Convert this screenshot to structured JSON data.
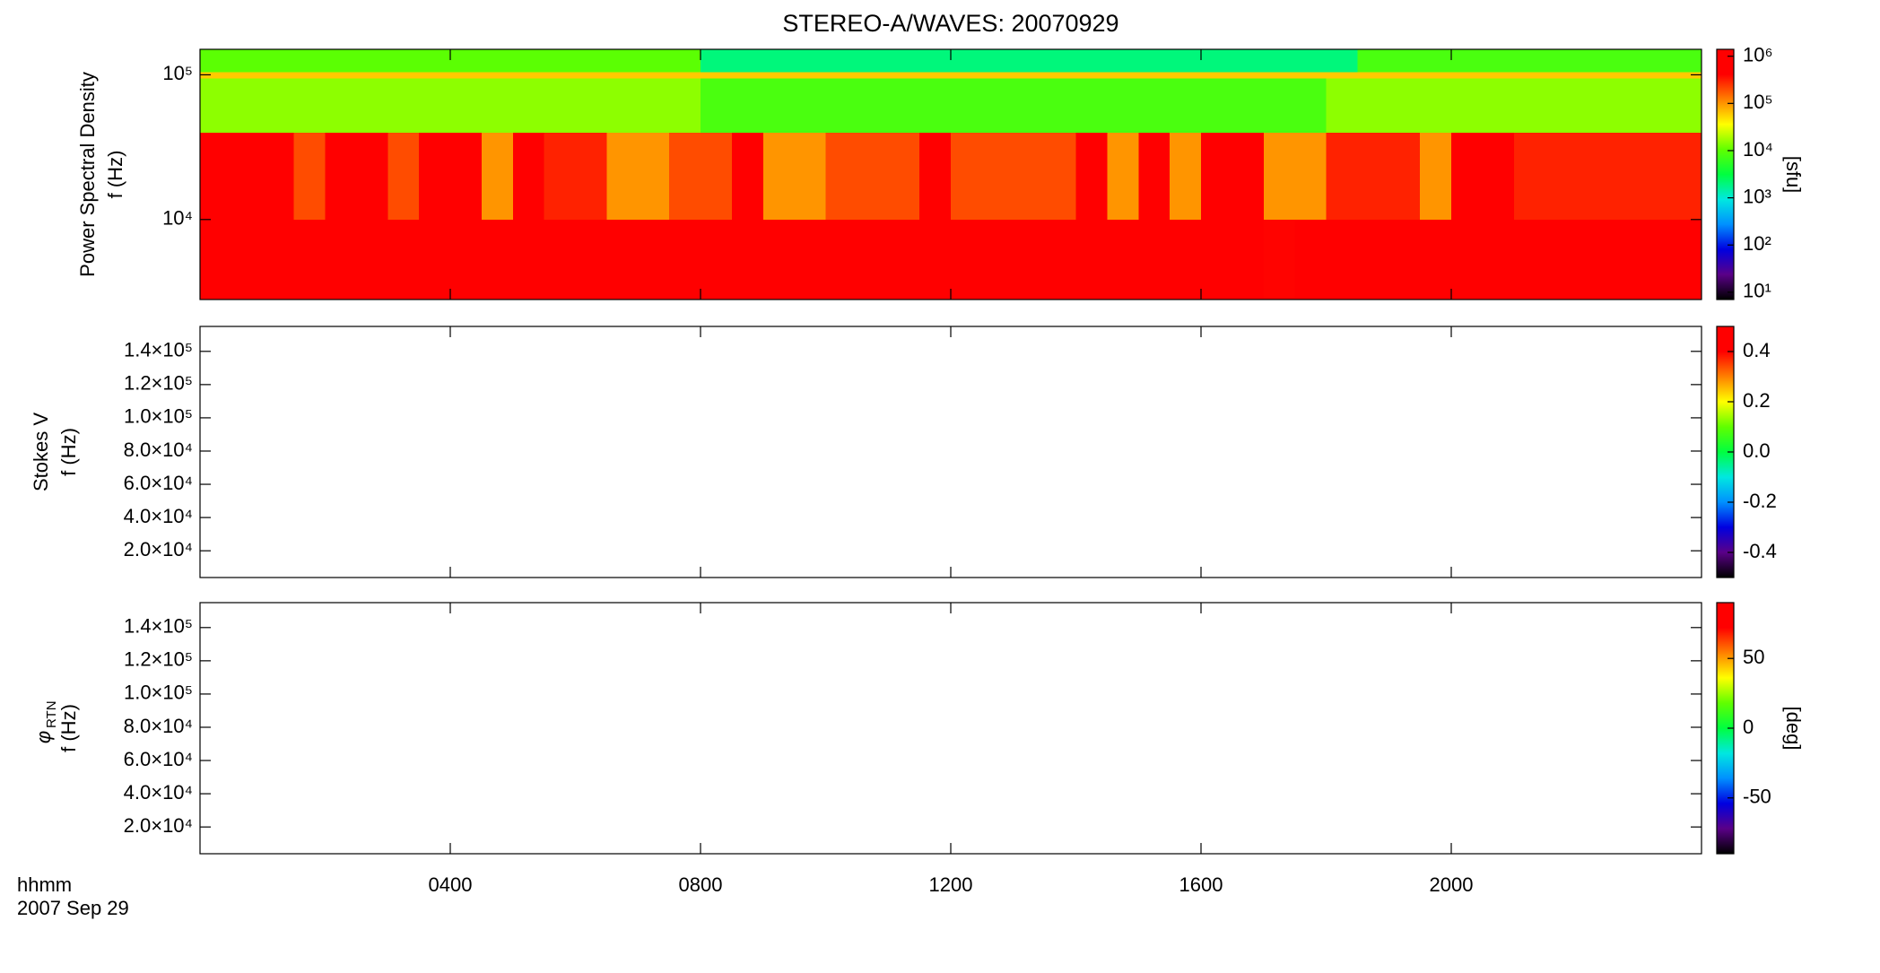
{
  "title": "STEREO-A/WAVES: 20070929",
  "colormap": [
    "#000000",
    "#5a0088",
    "#0000e0",
    "#0090ff",
    "#00e8e0",
    "#00ff40",
    "#60ff00",
    "#ffff00",
    "#ff8000",
    "#ff0000",
    "#ff0000"
  ],
  "time_axis": {
    "xlim": [
      0,
      24
    ],
    "xticks": [
      {
        "value": 4,
        "label": "0400"
      },
      {
        "value": 8,
        "label": "0800"
      },
      {
        "value": 12,
        "label": "1200"
      },
      {
        "value": 16,
        "label": "1600"
      },
      {
        "value": 20,
        "label": "2000"
      }
    ],
    "label": "hhmm",
    "date": "2007 Sep 29"
  },
  "chart_data": [
    {
      "type": "heatmap",
      "ylabel": [
        "Power Spectral Density",
        "f (Hz)"
      ],
      "ylog": true,
      "ylim": [
        2800,
        150000
      ],
      "yticks": [
        {
          "value": 10000,
          "label": "10⁴"
        },
        {
          "value": 100000,
          "label": "10⁵"
        }
      ],
      "zlog": true,
      "zlim": [
        7,
        1400000
      ],
      "zlabel": "[sfu]",
      "zticks": [
        {
          "value": 10,
          "label": "10¹"
        },
        {
          "value": 100,
          "label": "10²"
        },
        {
          "value": 1000,
          "label": "10³"
        },
        {
          "value": 10000,
          "label": "10⁴"
        },
        {
          "value": 100000,
          "label": "10⁵"
        },
        {
          "value": 1000000,
          "label": "10⁶"
        }
      ],
      "xbins": [
        0,
        0.5,
        1,
        1.5,
        2,
        2.5,
        3,
        3.5,
        4,
        4.5,
        5,
        5.5,
        6,
        6.5,
        7,
        7.5,
        8,
        8.5,
        9,
        9.5,
        10,
        10.5,
        11,
        11.5,
        12,
        12.5,
        13,
        13.5,
        14,
        14.5,
        15,
        15.5,
        16,
        16.5,
        17,
        17.5,
        18,
        18.5,
        19,
        19.5,
        20,
        20.5,
        21,
        21.5,
        22,
        22.5,
        23,
        23.5,
        24
      ],
      "ybins": [
        2800,
        10000,
        40000,
        95000,
        105000,
        150000
      ],
      "z": [
        [
          1000000.0,
          1000000.0,
          1000000.0,
          1000000.0,
          1000000.0,
          1000000.0,
          1000000.0,
          1000000.0,
          1000000.0,
          1000000.0,
          1000000.0,
          1000000.0,
          1000000.0,
          1000000.0,
          1000000.0,
          1000000.0,
          1000000.0,
          1000000.0,
          1000000.0,
          1000000.0,
          1000000.0,
          1000000.0,
          1000000.0,
          1000000.0,
          1000000.0,
          1000000.0,
          1000000.0,
          1000000.0,
          1000000.0,
          1000000.0,
          1000000.0,
          1000000.0,
          1000000.0,
          1000000.0,
          400000.0,
          1000000.0,
          1000000.0,
          1000000.0,
          1000000.0,
          1000000.0,
          1000000.0,
          1000000.0,
          1000000.0,
          1000000.0,
          1000000.0,
          1000000.0,
          1000000.0,
          1000000.0
        ],
        [
          1000000.0,
          1000000.0,
          1000000.0,
          200000.0,
          1000000.0,
          1000000.0,
          200000.0,
          1000000.0,
          1000000.0,
          100000.0,
          1000000.0,
          300000.0,
          300000.0,
          100000.0,
          100000.0,
          200000.0,
          200000.0,
          1000000.0,
          100000.0,
          100000.0,
          200000.0,
          200000.0,
          200000.0,
          1000000.0,
          200000.0,
          200000.0,
          200000.0,
          200000.0,
          1000000.0,
          100000.0,
          1000000.0,
          100000.0,
          1000000.0,
          1000000.0,
          100000.0,
          100000.0,
          300000.0,
          300000.0,
          300000.0,
          100000.0,
          1000000.0,
          1000000.0,
          300000.0,
          300000.0,
          300000.0,
          300000.0,
          300000.0,
          300000.0
        ],
        [
          15000.0,
          15000.0,
          15000.0,
          15000.0,
          15000.0,
          15000.0,
          15000.0,
          15000.0,
          15000.0,
          15000.0,
          15000.0,
          15000.0,
          15000.0,
          15000.0,
          15000.0,
          15000.0,
          8000.0,
          8000.0,
          8000.0,
          8000.0,
          8000.0,
          8000.0,
          8000.0,
          8000.0,
          8000.0,
          8000.0,
          8000.0,
          8000.0,
          8000.0,
          8000.0,
          8000.0,
          8000.0,
          8000.0,
          8000.0,
          8000.0,
          8000.0,
          15000.0,
          15000.0,
          15000.0,
          15000.0,
          15000.0,
          15000.0,
          15000.0,
          15000.0,
          15000.0,
          15000.0,
          15000.0,
          15000.0
        ],
        [
          60000.0,
          60000.0,
          60000.0,
          60000.0,
          60000.0,
          60000.0,
          60000.0,
          60000.0,
          60000.0,
          60000.0,
          60000.0,
          60000.0,
          60000.0,
          60000.0,
          60000.0,
          60000.0,
          60000.0,
          60000.0,
          60000.0,
          60000.0,
          60000.0,
          60000.0,
          60000.0,
          60000.0,
          60000.0,
          60000.0,
          60000.0,
          60000.0,
          60000.0,
          60000.0,
          60000.0,
          60000.0,
          60000.0,
          60000.0,
          60000.0,
          60000.0,
          60000.0,
          60000.0,
          60000.0,
          60000.0,
          60000.0,
          60000.0,
          60000.0,
          60000.0,
          60000.0,
          60000.0,
          60000.0,
          60000.0
        ],
        [
          10000.0,
          10000.0,
          10000.0,
          10000.0,
          10000.0,
          10000.0,
          10000.0,
          10000.0,
          10000.0,
          10000.0,
          10000.0,
          10000.0,
          10000.0,
          10000.0,
          10000.0,
          10000.0,
          2000.0,
          2000.0,
          2000.0,
          2000.0,
          2000.0,
          2000.0,
          2000.0,
          2000.0,
          2000.0,
          2000.0,
          2000.0,
          2000.0,
          2000.0,
          2000.0,
          2000.0,
          2000.0,
          2000.0,
          2000.0,
          2000.0,
          2000.0,
          2000.0,
          8000.0,
          8000.0,
          8000.0,
          8000.0,
          8000.0,
          8000.0,
          8000.0,
          8000.0,
          8000.0,
          8000.0,
          8000.0
        ]
      ]
    },
    {
      "type": "heatmap",
      "ylabel": [
        "Stokes V",
        "f (Hz)"
      ],
      "ylog": false,
      "ylim": [
        3900,
        155000
      ],
      "yticks": [
        {
          "value": 20000,
          "label": "2.0×10⁴"
        },
        {
          "value": 40000,
          "label": "4.0×10⁴"
        },
        {
          "value": 60000,
          "label": "6.0×10⁴"
        },
        {
          "value": 80000,
          "label": "8.0×10⁴"
        },
        {
          "value": 100000,
          "label": "1.0×10⁵"
        },
        {
          "value": 120000,
          "label": "1.2×10⁵"
        },
        {
          "value": 140000,
          "label": "1.4×10⁵"
        }
      ],
      "zlog": false,
      "zlim": [
        -0.5,
        0.5
      ],
      "zticks": [
        {
          "value": -0.4,
          "label": "-0.4"
        },
        {
          "value": -0.2,
          "label": "-0.2"
        },
        {
          "value": 0,
          "label": "0.0"
        },
        0.2,
        0.4
      ]
    },
    {
      "type": "heatmap",
      "ylabel": [
        "f (Hz)"
      ],
      "ysymbol": "φ",
      "ysubscript": "RTN",
      "ylog": false,
      "ylim": [
        3900,
        155000
      ],
      "yticks": [
        {
          "value": 20000,
          "label": "2.0×10⁴"
        },
        {
          "value": 40000,
          "label": "4.0×10⁴"
        },
        {
          "value": 60000,
          "label": "6.0×10⁴"
        },
        {
          "value": 80000,
          "label": "8.0×10⁴"
        },
        {
          "value": 100000,
          "label": "1.0×10⁵"
        },
        {
          "value": 120000,
          "label": "1.2×10⁵"
        },
        {
          "value": 140000,
          "label": "1.4×10⁵"
        }
      ],
      "zlog": false,
      "zlim": [
        -90,
        90
      ],
      "zlabel": "[deg]",
      "zticks": [
        -50,
        0,
        50
      ]
    }
  ]
}
